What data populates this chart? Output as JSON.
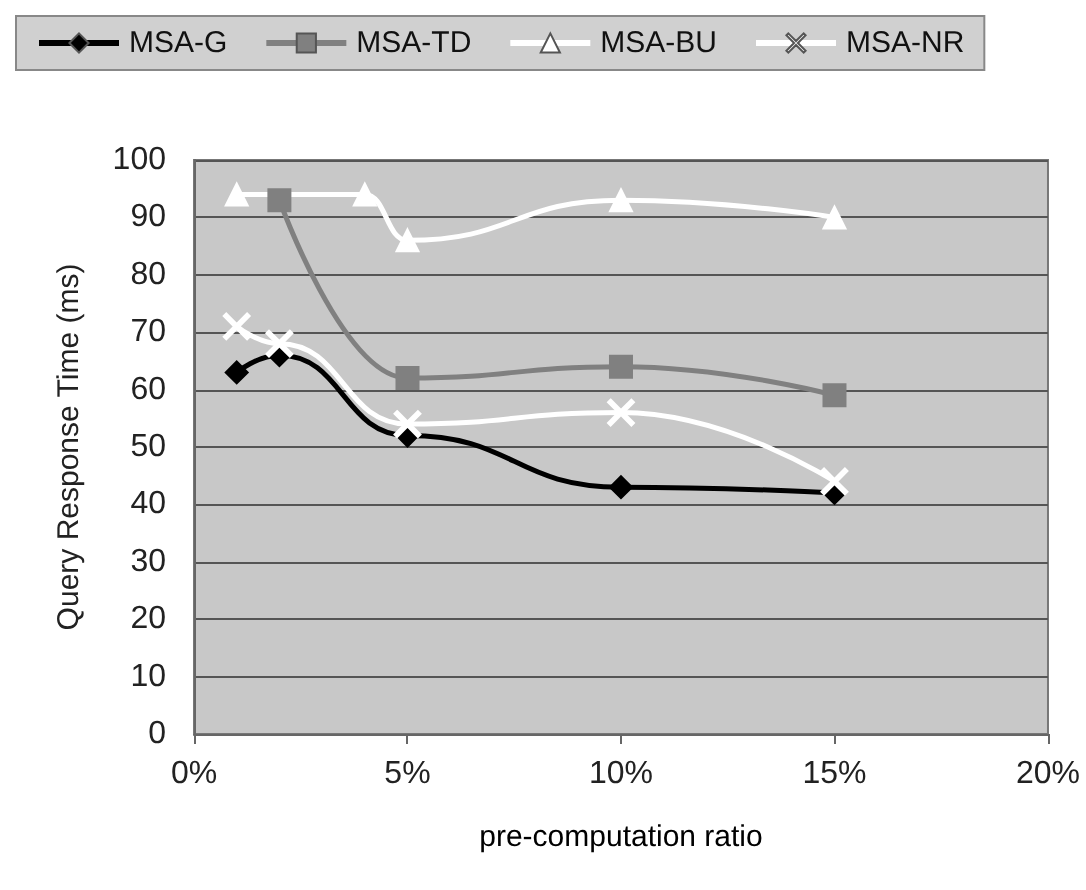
{
  "chart_data": {
    "type": "line",
    "xlabel": "pre-computation ratio",
    "ylabel": "Query Response Time (ms)",
    "xlim": [
      0,
      20
    ],
    "xticks": [
      {
        "value": 0,
        "label": "0%"
      },
      {
        "value": 5,
        "label": "5%"
      },
      {
        "value": 10,
        "label": "10%"
      },
      {
        "value": 15,
        "label": "15%"
      },
      {
        "value": 20,
        "label": "20%"
      }
    ],
    "ylim": [
      0,
      100
    ],
    "yticks": [
      0,
      10,
      20,
      30,
      40,
      50,
      60,
      70,
      80,
      90,
      100
    ],
    "grid": "y",
    "legend": "top",
    "series": [
      {
        "name": "MSA-G",
        "color": "#000000",
        "marker": "diamond",
        "x": [
          1,
          2,
          5,
          10,
          15
        ],
        "values": [
          63,
          66,
          52,
          43,
          42
        ]
      },
      {
        "name": "MSA-TD",
        "color": "#808080",
        "marker": "square",
        "x": [
          2,
          5,
          10,
          15
        ],
        "values": [
          93,
          62,
          64,
          59
        ]
      },
      {
        "name": "MSA-BU",
        "color": "#ffffff",
        "marker": "triangle",
        "x": [
          1,
          4,
          5,
          10,
          15
        ],
        "values": [
          94,
          94,
          86,
          93,
          90
        ]
      },
      {
        "name": "MSA-NR",
        "color": "#ffffff",
        "marker": "cross",
        "x": [
          1,
          2,
          5,
          10,
          15
        ],
        "values": [
          71,
          68,
          54,
          56,
          44
        ]
      }
    ]
  }
}
